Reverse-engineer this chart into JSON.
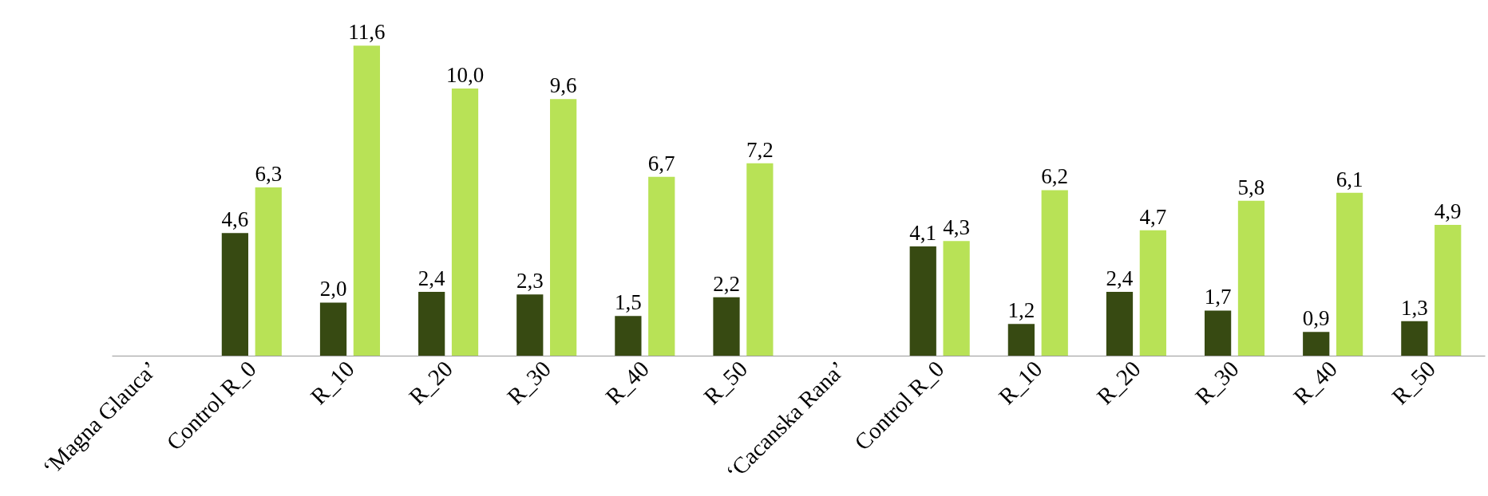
{
  "chart_data": {
    "type": "bar",
    "categories": [
      "‘Magna Glauca’",
      "Control R_0",
      "R_10",
      "R_20",
      "R_30",
      "R_40",
      "R_50",
      "‘Cacanska Rana’",
      "Control R_0",
      "R_10",
      "R_20",
      "R_30",
      "R_40",
      "R_50"
    ],
    "series": [
      {
        "color": "#374a12",
        "values": [
          null,
          4.6,
          2.0,
          2.4,
          2.3,
          1.5,
          2.2,
          null,
          4.1,
          1.2,
          2.4,
          1.7,
          0.9,
          1.3
        ],
        "value_labels": [
          null,
          "4,6",
          "2,0",
          "2,4",
          "2,3",
          "1,5",
          "2,2",
          null,
          "4,1",
          "1,2",
          "2,4",
          "1,7",
          "0,9",
          "1,3"
        ]
      },
      {
        "color": "#b8e256",
        "values": [
          null,
          6.3,
          11.6,
          10.0,
          9.6,
          6.7,
          7.2,
          null,
          4.3,
          6.2,
          4.7,
          5.8,
          6.1,
          4.9
        ],
        "value_labels": [
          null,
          "6,3",
          "11,6",
          "10,0",
          "9,6",
          "6,7",
          "7,2",
          null,
          "4,3",
          "6,2",
          "4,7",
          "5,8",
          "6,1",
          "4,9"
        ]
      }
    ],
    "grid": false,
    "tick_labels": "x"
  }
}
